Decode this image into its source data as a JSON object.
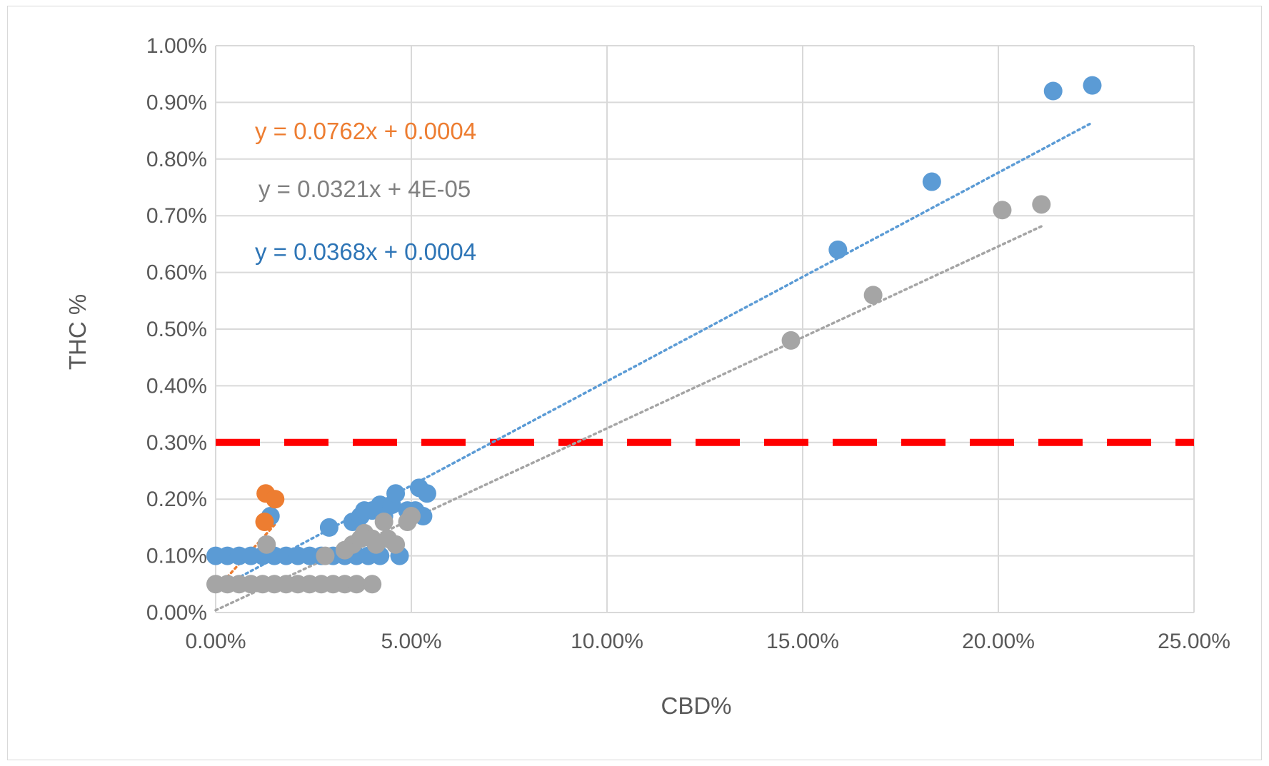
{
  "chart_data": {
    "type": "scatter",
    "title": "",
    "xlabel": "CBD%",
    "ylabel": "THC %",
    "xlim": [
      0,
      0.25
    ],
    "ylim": [
      0,
      0.01
    ],
    "x_ticks": [
      0,
      0.05,
      0.1,
      0.15,
      0.2,
      0.25
    ],
    "x_tick_labels": [
      "0.00%",
      "5.00%",
      "10.00%",
      "15.00%",
      "20.00%",
      "25.00%"
    ],
    "y_ticks": [
      0,
      0.001,
      0.002,
      0.003,
      0.004,
      0.005,
      0.006,
      0.007,
      0.008,
      0.009,
      0.01
    ],
    "y_tick_labels": [
      "0.00%",
      "0.10%",
      "0.20%",
      "0.30%",
      "0.40%",
      "0.50%",
      "0.60%",
      "0.70%",
      "0.80%",
      "0.90%",
      "1.00%"
    ],
    "grid": true,
    "legend": "none",
    "reference_line": {
      "y": 0.003,
      "color": "#ff0000",
      "style": "dashed"
    },
    "series": [
      {
        "color": "#5b9bd5",
        "points": [
          [
            0.0,
            0.001
          ],
          [
            0.003,
            0.001
          ],
          [
            0.006,
            0.001
          ],
          [
            0.009,
            0.001
          ],
          [
            0.012,
            0.001
          ],
          [
            0.015,
            0.001
          ],
          [
            0.018,
            0.001
          ],
          [
            0.021,
            0.001
          ],
          [
            0.024,
            0.001
          ],
          [
            0.027,
            0.001
          ],
          [
            0.03,
            0.001
          ],
          [
            0.033,
            0.001
          ],
          [
            0.036,
            0.001
          ],
          [
            0.039,
            0.001
          ],
          [
            0.042,
            0.001
          ],
          [
            0.047,
            0.001
          ],
          [
            0.014,
            0.0017
          ],
          [
            0.029,
            0.0015
          ],
          [
            0.035,
            0.0016
          ],
          [
            0.037,
            0.0017
          ],
          [
            0.038,
            0.0018
          ],
          [
            0.04,
            0.0018
          ],
          [
            0.042,
            0.0019
          ],
          [
            0.043,
            0.0017
          ],
          [
            0.045,
            0.0019
          ],
          [
            0.046,
            0.0021
          ],
          [
            0.049,
            0.0018
          ],
          [
            0.051,
            0.0018
          ],
          [
            0.052,
            0.0022
          ],
          [
            0.053,
            0.0017
          ],
          [
            0.054,
            0.0021
          ],
          [
            0.159,
            0.0064
          ],
          [
            0.183,
            0.0076
          ],
          [
            0.214,
            0.0092
          ],
          [
            0.224,
            0.0093
          ]
        ],
        "trendline": {
          "equation": "y = 0.0368x + 0.0004",
          "slope": 0.0368,
          "intercept": 0.0004,
          "x_range": [
            0.0,
            0.224
          ]
        }
      },
      {
        "color": "#a5a5a5",
        "points": [
          [
            0.0,
            0.0005
          ],
          [
            0.003,
            0.0005
          ],
          [
            0.006,
            0.0005
          ],
          [
            0.009,
            0.0005
          ],
          [
            0.012,
            0.0005
          ],
          [
            0.015,
            0.0005
          ],
          [
            0.018,
            0.0005
          ],
          [
            0.021,
            0.0005
          ],
          [
            0.024,
            0.0005
          ],
          [
            0.027,
            0.0005
          ],
          [
            0.03,
            0.0005
          ],
          [
            0.033,
            0.0005
          ],
          [
            0.036,
            0.0005
          ],
          [
            0.04,
            0.0005
          ],
          [
            0.013,
            0.0012
          ],
          [
            0.028,
            0.001
          ],
          [
            0.033,
            0.0011
          ],
          [
            0.035,
            0.0012
          ],
          [
            0.037,
            0.0013
          ],
          [
            0.038,
            0.0014
          ],
          [
            0.04,
            0.0013
          ],
          [
            0.041,
            0.0012
          ],
          [
            0.043,
            0.0016
          ],
          [
            0.044,
            0.0013
          ],
          [
            0.046,
            0.0012
          ],
          [
            0.049,
            0.0016
          ],
          [
            0.05,
            0.0017
          ],
          [
            0.147,
            0.0048
          ],
          [
            0.168,
            0.0056
          ],
          [
            0.201,
            0.0071
          ],
          [
            0.211,
            0.0072
          ]
        ],
        "trendline": {
          "equation": "y = 0.0321x + 4E-05",
          "slope": 0.0321,
          "intercept": 4e-05,
          "x_range": [
            0.0,
            0.211
          ]
        }
      },
      {
        "color": "#ed7d31",
        "points": [
          [
            0.0128,
            0.0021
          ],
          [
            0.0152,
            0.002
          ],
          [
            0.0125,
            0.0016
          ]
        ],
        "trendline": {
          "equation": "y = 0.0762x + 0.0004",
          "slope": 0.0762,
          "intercept": 0.0004,
          "x_range": [
            0.0,
            0.0152
          ]
        }
      }
    ]
  }
}
